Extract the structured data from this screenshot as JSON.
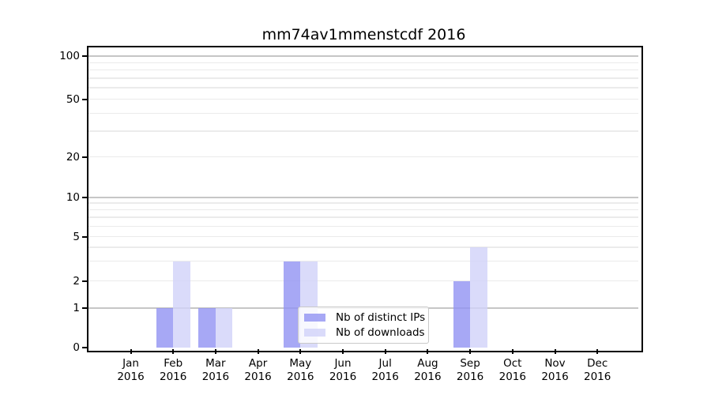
{
  "title": "mm74av1mmenstcdf 2016",
  "chart_data": {
    "type": "bar",
    "title": "mm74av1mmenstcdf 2016",
    "categories": [
      "Jan 2016",
      "Feb 2016",
      "Mar 2016",
      "Apr 2016",
      "May 2016",
      "Jun 2016",
      "Jul 2016",
      "Aug 2016",
      "Sep 2016",
      "Oct 2016",
      "Nov 2016",
      "Dec 2016"
    ],
    "x_months": [
      "Jan",
      "Feb",
      "Mar",
      "Apr",
      "May",
      "Jun",
      "Jul",
      "Aug",
      "Sep",
      "Oct",
      "Nov",
      "Dec"
    ],
    "x_year": "2016",
    "series": [
      {
        "name": "Nb of distinct IPs",
        "color": "#9192f3",
        "values": [
          0,
          1,
          1,
          0,
          3,
          0,
          0,
          0,
          2,
          0,
          0,
          0
        ]
      },
      {
        "name": "Nb of downloads",
        "color": "#d1d2f9",
        "values": [
          0,
          3,
          1,
          0,
          3,
          0,
          0,
          0,
          4,
          0,
          0,
          0
        ]
      }
    ],
    "bar_alpha": 0.8,
    "ylabel": "",
    "xlabel": "",
    "ylim": [
      0,
      100
    ],
    "yscale": "log-like (linear 0-1, logarithmic above)",
    "yticks": [
      0,
      1,
      2,
      5,
      10,
      20,
      50,
      100
    ],
    "grid_major_values": [
      1,
      10,
      100
    ],
    "grid_minor_values": [
      2,
      3,
      4,
      5,
      6,
      7,
      8,
      9,
      20,
      30,
      40,
      50,
      60,
      70,
      80,
      90
    ],
    "grid": "on",
    "legend_position": "lower center"
  },
  "colors": {
    "grid_minor": "#ebebeb",
    "grid_major": "#c6c6c6",
    "axis": "#000000",
    "background": "#ffffff"
  }
}
